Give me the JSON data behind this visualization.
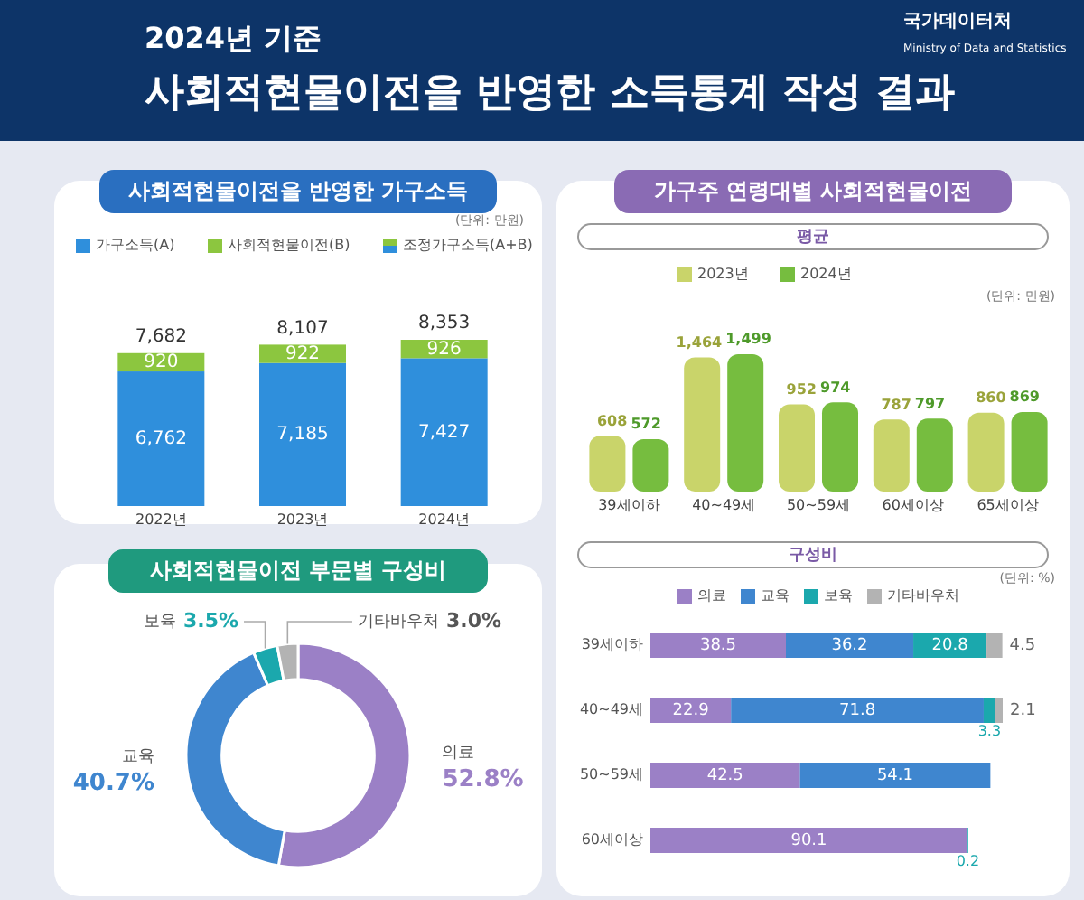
{
  "chart_data": [
    {
      "type": "bar",
      "stacked": true,
      "title": "사회적현물이전을 반영한 가구소득",
      "categories": [
        "2022년",
        "2023년",
        "2024년"
      ],
      "legend": "top",
      "series": [
        {
          "name": "가구소득(A)",
          "color": "#2f8fdc",
          "values": [
            6762,
            7185,
            7427
          ],
          "value_labels": [
            "6,762",
            "7,185",
            "7,427"
          ]
        },
        {
          "name": "사회적현물이전(B)",
          "color": "#8cc63f",
          "values": [
            920,
            922,
            926
          ],
          "value_labels": [
            "920",
            "922",
            "926"
          ]
        }
      ],
      "totals": [
        "7,682",
        "8,107",
        "8,353"
      ],
      "annotations": [
        "2024년 기준",
        "사회적현물이전을 반영한 소득통계 작성 결과",
        "국가데이터처",
        "Ministry of Data and Statistics",
        "(단위: 만원)",
        "조정가구소득(A+B)"
      ]
    },
    {
      "type": "donut",
      "title": "사회적현물이전 부문별 구성비",
      "categories": [
        "의료",
        "교육",
        "보육",
        "기타바우처"
      ],
      "values": [
        52.8,
        40.7,
        3.5,
        3.0
      ],
      "colors": [
        "#9b80c6",
        "#3f86cf",
        "#1ba8ad",
        "#b3b3b3"
      ],
      "value_labels": [
        "52.8%",
        "40.7%",
        "3.5%",
        "3.0%"
      ]
    },
    {
      "type": "bar",
      "title": "가구주 연령대별 사회적현물이전",
      "subtitle": "평균",
      "categories": [
        "39세이하",
        "40~49세",
        "50~59세",
        "60세이상",
        "65세이상"
      ],
      "legend": "top",
      "series": [
        {
          "name": "2023년",
          "color": "#c9d46a",
          "values": [
            608,
            1464,
            952,
            787,
            860
          ],
          "value_labels": [
            "608",
            "1,464",
            "952",
            "787",
            "860"
          ]
        },
        {
          "name": "2024년",
          "color": "#76bd3f",
          "values": [
            572,
            1499,
            974,
            797,
            869
          ],
          "value_labels": [
            "572",
            "1,499",
            "974",
            "797",
            "869"
          ]
        }
      ],
      "annotations": [
        "(단위: 만원)"
      ]
    },
    {
      "type": "bar",
      "stacked": true,
      "orientation": "horizontal",
      "subtitle": "구성비",
      "categories": [
        "39세이하",
        "40~49세",
        "50~59세",
        "60세이상"
      ],
      "legend": "top",
      "data_labels": true,
      "series": [
        {
          "name": "의료",
          "color": "#9b80c6",
          "values": [
            38.5,
            22.9,
            42.5,
            90.1
          ]
        },
        {
          "name": "교육",
          "color": "#3f86cf",
          "values": [
            36.2,
            71.8,
            54.1,
            null
          ]
        },
        {
          "name": "보육",
          "color": "#1ba8ad",
          "values": [
            20.8,
            3.3,
            null,
            0.2
          ]
        },
        {
          "name": "기타바우처",
          "color": "#b3b3b3",
          "values": [
            4.5,
            2.1,
            null,
            null
          ]
        }
      ],
      "annotations": [
        "(단위: %)"
      ]
    }
  ]
}
